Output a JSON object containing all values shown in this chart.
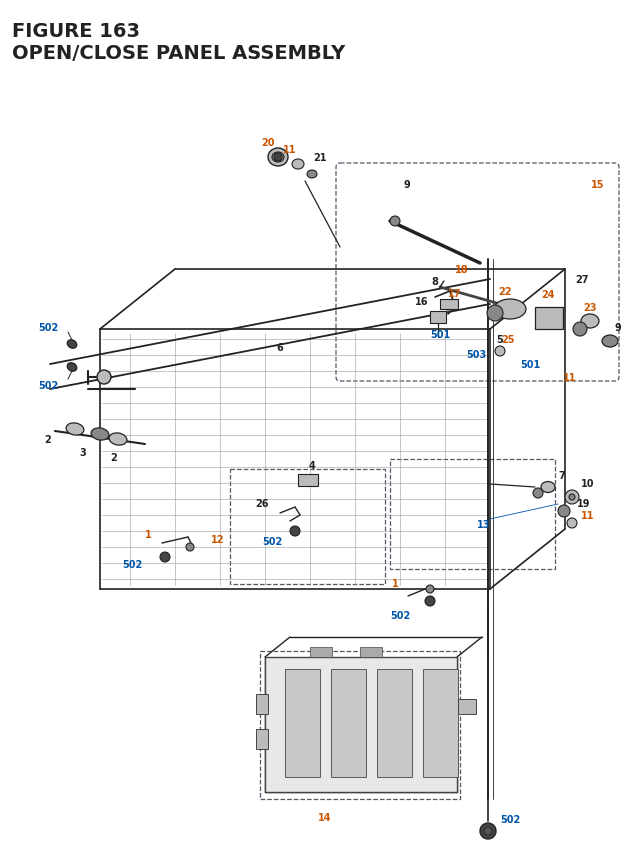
{
  "title_line1": "FIGURE 163",
  "title_line2": "OPEN/CLOSE PANEL ASSEMBLY",
  "bg": "#ffffff",
  "dark": "#222222",
  "orange": "#cc5500",
  "blue": "#0055aa",
  "gray": "#888888",
  "lgray": "#bbbbbb",
  "dgray": "#444444"
}
